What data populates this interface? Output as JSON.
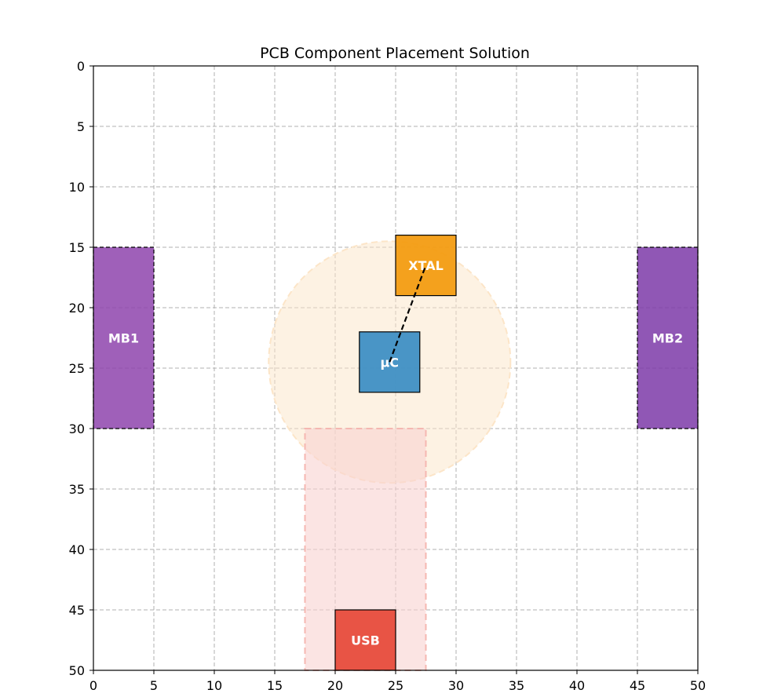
{
  "chart_data": {
    "type": "placement",
    "title": "PCB Component Placement Solution",
    "xlabel": "",
    "ylabel": "",
    "xlim": [
      0,
      50
    ],
    "ylim": [
      0,
      50
    ],
    "y_inverted": true,
    "xticks": [
      0,
      5,
      10,
      15,
      20,
      25,
      30,
      35,
      40,
      45,
      50
    ],
    "yticks": [
      0,
      5,
      10,
      15,
      20,
      25,
      30,
      35,
      40,
      45,
      50
    ],
    "grid": true,
    "legend": "none",
    "zones": [
      {
        "shape": "circle",
        "cx": 24.5,
        "cy": 24.5,
        "r": 10,
        "color": "#fce5c8"
      },
      {
        "shape": "rect",
        "x": 17.5,
        "y": 30,
        "w": 10,
        "h": 20,
        "color": "#f9d2d0"
      }
    ],
    "components": [
      {
        "label": "MB1",
        "x": 0,
        "y": 15,
        "w": 5,
        "h": 15,
        "color": "#8e44ad"
      },
      {
        "label": "MB2",
        "x": 45,
        "y": 15,
        "w": 5,
        "h": 15,
        "color": "#7d3aa8"
      },
      {
        "label": "XTAL",
        "x": 25,
        "y": 14,
        "w": 5,
        "h": 5,
        "color": "#f39c12"
      },
      {
        "label": "μC",
        "x": 22,
        "y": 22,
        "w": 5,
        "h": 5,
        "color": "#3f8fc4"
      },
      {
        "label": "USB",
        "x": 20,
        "y": 45,
        "w": 5,
        "h": 5,
        "color": "#e74c3c"
      }
    ],
    "connections": [
      {
        "from": "μC",
        "to": "XTAL",
        "x1": 24.5,
        "y1": 24.5,
        "x2": 27.5,
        "y2": 16.5,
        "style": "dashed"
      }
    ]
  }
}
